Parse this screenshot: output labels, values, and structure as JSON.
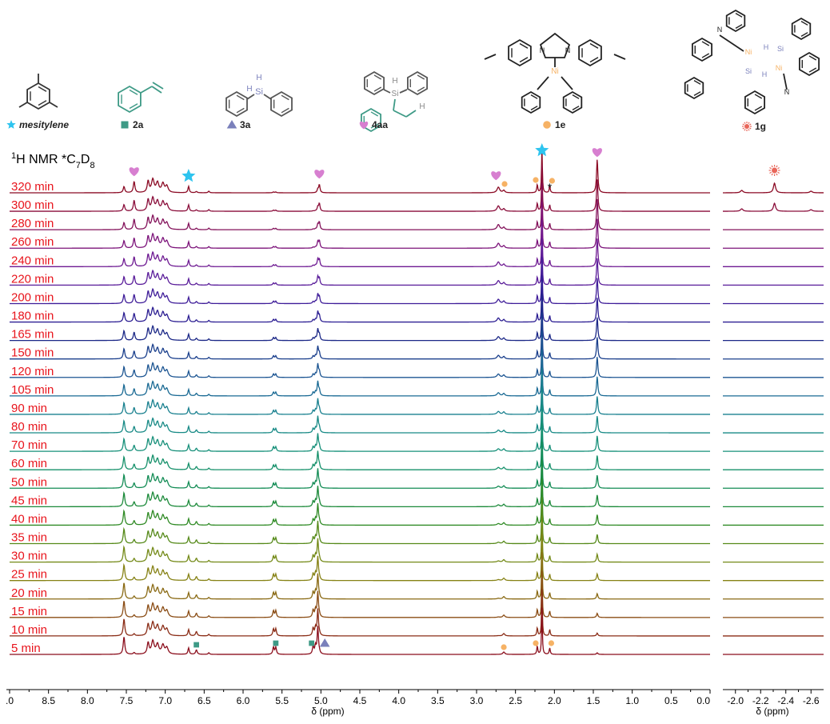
{
  "compounds": [
    {
      "label": "mesitylene",
      "marker": "star",
      "color": "#2ec4ef",
      "italic": true,
      "bold": true
    },
    {
      "label": "2a",
      "marker": "square",
      "color": "#3e9a86",
      "italic": false,
      "bold": true
    },
    {
      "label": "3a",
      "marker": "triangle",
      "color": "#7a80bb",
      "italic": false,
      "bold": true
    },
    {
      "label": "4aa",
      "marker": "heart",
      "color": "#d77fd0",
      "italic": false,
      "bold": true
    },
    {
      "label": "1e",
      "marker": "circle",
      "color": "#f6b265",
      "italic": false,
      "bold": true
    },
    {
      "label": "1g",
      "marker": "sun",
      "color": "#e8665a",
      "italic": false,
      "bold": true
    }
  ],
  "structure_atoms": {
    "si": "Si",
    "h": "H",
    "ni": "Ni",
    "n": "N"
  },
  "nmr_label": {
    "prefix": "H NMR *C",
    "sup": "1",
    "sub7": "7",
    "d": "D",
    "sub8": "8"
  },
  "chart_data": {
    "type": "line",
    "title": "",
    "xlabel": "δ (ppm)",
    "xlabel_right": "δ (ppm)",
    "x_main_ticks": [
      ".0",
      "8.5",
      "8.0",
      "7.5",
      "7.0",
      "6.5",
      "6.0",
      "5.5",
      "5.0",
      "4.5",
      "4.0",
      "3.5",
      "3.0",
      "2.5",
      "2.0",
      "1.5",
      "1.0",
      "0.5",
      "0.0"
    ],
    "x_right_ticks": [
      "-2.0",
      "-2.2",
      "-2.4",
      "-2.6"
    ],
    "x_main_range": [
      9.0,
      0.0
    ],
    "x_right_range": [
      -1.9,
      -2.7
    ],
    "series": [
      {
        "name": "320 min",
        "color": "#8b0a24"
      },
      {
        "name": "300 min",
        "color": "#8a0d3a"
      },
      {
        "name": "280 min",
        "color": "#83115a"
      },
      {
        "name": "260 min",
        "color": "#7c137a"
      },
      {
        "name": "240 min",
        "color": "#6e1a92"
      },
      {
        "name": "220 min",
        "color": "#5a1d9a"
      },
      {
        "name": "200 min",
        "color": "#3f1d99"
      },
      {
        "name": "180 min",
        "color": "#2b1d92"
      },
      {
        "name": "165 min",
        "color": "#1c2887"
      },
      {
        "name": "150 min",
        "color": "#1a3f8c"
      },
      {
        "name": "120 min",
        "color": "#1c5592"
      },
      {
        "name": "105 min",
        "color": "#1a6a94"
      },
      {
        "name": "90 min",
        "color": "#19808f"
      },
      {
        "name": "80 min",
        "color": "#188a86"
      },
      {
        "name": "70 min",
        "color": "#17907a"
      },
      {
        "name": "60 min",
        "color": "#15906a"
      },
      {
        "name": "50 min",
        "color": "#138c55"
      },
      {
        "name": "45 min",
        "color": "#1c8a3a"
      },
      {
        "name": "40 min",
        "color": "#2f8a24"
      },
      {
        "name": "35 min",
        "color": "#568a1a"
      },
      {
        "name": "30 min",
        "color": "#748a18"
      },
      {
        "name": "25 min",
        "color": "#868215"
      },
      {
        "name": "20 min",
        "color": "#8a6a14"
      },
      {
        "name": "15 min",
        "color": "#8a4c14"
      },
      {
        "name": "10 min",
        "color": "#8a2c16"
      },
      {
        "name": "5 min",
        "color": "#8b0e1c"
      }
    ],
    "peaks": {
      "mesitylene": [
        6.7,
        2.16
      ],
      "styrene_2a": [
        6.6,
        5.6,
        5.1
      ],
      "silane_3a": [
        4.95
      ],
      "product_4aa": [
        7.4,
        7.53,
        5.02,
        2.72,
        1.45
      ],
      "complex_1e": [
        2.65,
        2.22,
        2.06
      ],
      "complex_1g": [
        -2.31
      ]
    },
    "annotations": [
      "*"
    ],
    "grid": false,
    "legend": "none"
  }
}
